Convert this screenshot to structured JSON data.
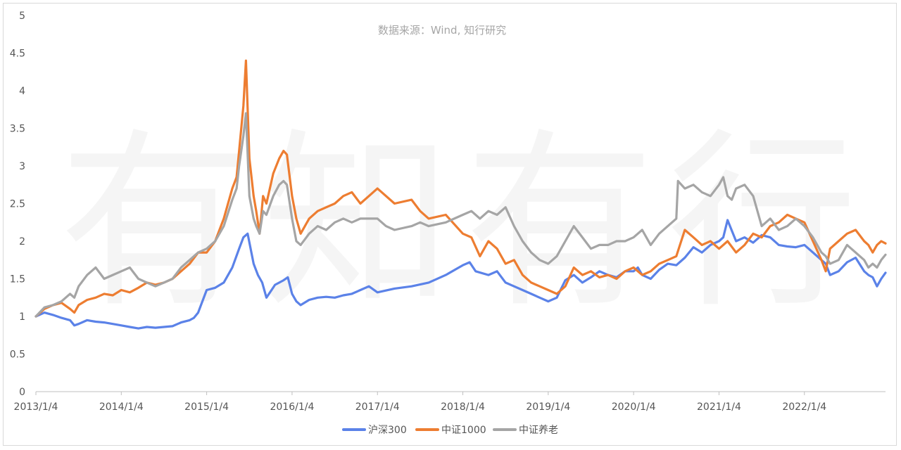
{
  "chart_data": {
    "type": "line",
    "title": "数据来源：Wind, 知行研究",
    "watermark": "有知有行",
    "xlabel": "",
    "ylabel": "",
    "ylim": [
      0,
      5
    ],
    "yticks": [
      "0",
      "0.5",
      "1",
      "1.5",
      "2",
      "2.5",
      "3",
      "3.5",
      "4",
      "4.5",
      "5"
    ],
    "xticks": [
      "2013/1/4",
      "2014/1/4",
      "2015/1/4",
      "2016/1/4",
      "2017/1/4",
      "2018/1/4",
      "2019/1/4",
      "2020/1/4",
      "2021/1/4",
      "2022/1/4"
    ],
    "xlim": [
      2013.0,
      2022.95
    ],
    "grid": false,
    "legend_position": "bottom",
    "colors": {
      "hs300": "#5b82e8",
      "zz1000": "#ed7d31",
      "zzyl": "#a5a5a5"
    },
    "series": [
      {
        "name": "沪深300",
        "color": "#5b82e8",
        "x": [
          2013.0,
          2013.1,
          2013.2,
          2013.3,
          2013.4,
          2013.45,
          2013.5,
          2013.6,
          2013.7,
          2013.8,
          2013.9,
          2014.0,
          2014.1,
          2014.2,
          2014.3,
          2014.4,
          2014.5,
          2014.6,
          2014.7,
          2014.8,
          2014.85,
          2014.9,
          2015.0,
          2015.1,
          2015.2,
          2015.3,
          2015.38,
          2015.43,
          2015.48,
          2015.55,
          2015.6,
          2015.65,
          2015.7,
          2015.8,
          2015.9,
          2015.95,
          2016.0,
          2016.05,
          2016.1,
          2016.2,
          2016.3,
          2016.4,
          2016.5,
          2016.6,
          2016.7,
          2016.8,
          2016.9,
          2017.0,
          2017.2,
          2017.4,
          2017.6,
          2017.8,
          2018.0,
          2018.08,
          2018.15,
          2018.3,
          2018.4,
          2018.5,
          2018.6,
          2018.7,
          2018.8,
          2018.9,
          2019.0,
          2019.1,
          2019.2,
          2019.3,
          2019.4,
          2019.5,
          2019.6,
          2019.7,
          2019.8,
          2019.9,
          2020.0,
          2020.05,
          2020.1,
          2020.2,
          2020.3,
          2020.4,
          2020.5,
          2020.6,
          2020.7,
          2020.8,
          2020.9,
          2021.0,
          2021.05,
          2021.1,
          2021.2,
          2021.3,
          2021.4,
          2021.5,
          2021.6,
          2021.7,
          2021.8,
          2021.9,
          2022.0,
          2022.1,
          2022.2,
          2022.25,
          2022.3,
          2022.4,
          2022.5,
          2022.6,
          2022.7,
          2022.75,
          2022.8,
          2022.85,
          2022.9,
          2022.95
        ],
        "y": [
          1.0,
          1.05,
          1.02,
          0.98,
          0.95,
          0.88,
          0.9,
          0.95,
          0.93,
          0.92,
          0.9,
          0.88,
          0.86,
          0.84,
          0.86,
          0.85,
          0.86,
          0.87,
          0.92,
          0.95,
          0.98,
          1.05,
          1.35,
          1.38,
          1.45,
          1.65,
          1.9,
          2.05,
          2.1,
          1.7,
          1.55,
          1.45,
          1.25,
          1.42,
          1.48,
          1.52,
          1.3,
          1.2,
          1.15,
          1.22,
          1.25,
          1.26,
          1.25,
          1.28,
          1.3,
          1.35,
          1.4,
          1.32,
          1.37,
          1.4,
          1.45,
          1.55,
          1.68,
          1.72,
          1.6,
          1.55,
          1.6,
          1.45,
          1.4,
          1.35,
          1.3,
          1.25,
          1.2,
          1.25,
          1.48,
          1.55,
          1.45,
          1.52,
          1.6,
          1.55,
          1.52,
          1.6,
          1.6,
          1.65,
          1.55,
          1.5,
          1.62,
          1.7,
          1.68,
          1.78,
          1.92,
          1.85,
          1.95,
          2.0,
          2.05,
          2.28,
          2.0,
          2.05,
          1.98,
          2.08,
          2.05,
          1.95,
          1.93,
          1.92,
          1.95,
          1.85,
          1.75,
          1.7,
          1.55,
          1.6,
          1.72,
          1.78,
          1.6,
          1.55,
          1.52,
          1.4,
          1.5,
          1.58
        ]
      },
      {
        "name": "中证1000",
        "color": "#ed7d31",
        "x": [
          2013.0,
          2013.1,
          2013.2,
          2013.3,
          2013.4,
          2013.45,
          2013.5,
          2013.6,
          2013.7,
          2013.8,
          2013.9,
          2014.0,
          2014.1,
          2014.2,
          2014.3,
          2014.4,
          2014.5,
          2014.6,
          2014.7,
          2014.8,
          2014.9,
          2015.0,
          2015.1,
          2015.2,
          2015.3,
          2015.35,
          2015.38,
          2015.43,
          2015.46,
          2015.5,
          2015.55,
          2015.58,
          2015.62,
          2015.66,
          2015.7,
          2015.78,
          2015.85,
          2015.9,
          2015.94,
          2016.0,
          2016.05,
          2016.1,
          2016.2,
          2016.3,
          2016.4,
          2016.5,
          2016.6,
          2016.7,
          2016.8,
          2016.9,
          2017.0,
          2017.05,
          2017.2,
          2017.4,
          2017.5,
          2017.6,
          2017.8,
          2018.0,
          2018.1,
          2018.2,
          2018.3,
          2018.4,
          2018.5,
          2018.6,
          2018.7,
          2018.8,
          2018.9,
          2019.0,
          2019.1,
          2019.2,
          2019.3,
          2019.4,
          2019.5,
          2019.6,
          2019.7,
          2019.8,
          2019.9,
          2020.0,
          2020.1,
          2020.2,
          2020.3,
          2020.4,
          2020.5,
          2020.6,
          2020.7,
          2020.8,
          2020.9,
          2021.0,
          2021.05,
          2021.1,
          2021.2,
          2021.3,
          2021.4,
          2021.5,
          2021.6,
          2021.7,
          2021.8,
          2021.9,
          2022.0,
          2022.1,
          2022.2,
          2022.25,
          2022.3,
          2022.4,
          2022.5,
          2022.6,
          2022.7,
          2022.75,
          2022.8,
          2022.85,
          2022.9,
          2022.95
        ],
        "y": [
          1.0,
          1.1,
          1.15,
          1.18,
          1.1,
          1.05,
          1.15,
          1.22,
          1.25,
          1.3,
          1.28,
          1.35,
          1.32,
          1.38,
          1.45,
          1.42,
          1.45,
          1.5,
          1.6,
          1.7,
          1.85,
          1.85,
          2.0,
          2.3,
          2.7,
          2.85,
          3.2,
          3.8,
          4.4,
          3.1,
          2.6,
          2.4,
          2.1,
          2.6,
          2.5,
          2.9,
          3.1,
          3.2,
          3.15,
          2.6,
          2.3,
          2.1,
          2.3,
          2.4,
          2.45,
          2.5,
          2.6,
          2.65,
          2.5,
          2.6,
          2.7,
          2.65,
          2.5,
          2.55,
          2.4,
          2.3,
          2.35,
          2.1,
          2.05,
          1.8,
          2.0,
          1.9,
          1.7,
          1.75,
          1.55,
          1.45,
          1.4,
          1.35,
          1.3,
          1.4,
          1.65,
          1.55,
          1.6,
          1.52,
          1.55,
          1.5,
          1.6,
          1.65,
          1.55,
          1.6,
          1.7,
          1.75,
          1.8,
          2.15,
          2.05,
          1.95,
          2.0,
          1.9,
          1.95,
          2.0,
          1.85,
          1.95,
          2.1,
          2.05,
          2.2,
          2.25,
          2.35,
          2.3,
          2.25,
          2.0,
          1.75,
          1.6,
          1.9,
          2.0,
          2.1,
          2.15,
          2.0,
          1.95,
          1.85,
          1.95,
          2.0,
          1.97
        ]
      },
      {
        "name": "中证养老",
        "color": "#a5a5a5",
        "x": [
          2013.0,
          2013.1,
          2013.2,
          2013.3,
          2013.4,
          2013.45,
          2013.5,
          2013.6,
          2013.7,
          2013.8,
          2013.9,
          2014.0,
          2014.1,
          2014.2,
          2014.3,
          2014.4,
          2014.5,
          2014.6,
          2014.7,
          2014.8,
          2014.9,
          2015.0,
          2015.1,
          2015.2,
          2015.3,
          2015.35,
          2015.38,
          2015.43,
          2015.46,
          2015.5,
          2015.55,
          2015.58,
          2015.62,
          2015.66,
          2015.7,
          2015.78,
          2015.85,
          2015.9,
          2015.94,
          2016.0,
          2016.05,
          2016.1,
          2016.2,
          2016.3,
          2016.4,
          2016.5,
          2016.6,
          2016.7,
          2016.8,
          2016.9,
          2017.0,
          2017.1,
          2017.2,
          2017.4,
          2017.5,
          2017.6,
          2017.8,
          2018.0,
          2018.1,
          2018.2,
          2018.3,
          2018.4,
          2018.5,
          2018.6,
          2018.7,
          2018.8,
          2018.9,
          2019.0,
          2019.1,
          2019.2,
          2019.3,
          2019.4,
          2019.5,
          2019.6,
          2019.7,
          2019.8,
          2019.9,
          2020.0,
          2020.1,
          2020.2,
          2020.3,
          2020.4,
          2020.5,
          2020.52,
          2020.6,
          2020.7,
          2020.8,
          2020.9,
          2021.0,
          2021.05,
          2021.1,
          2021.15,
          2021.2,
          2021.3,
          2021.4,
          2021.5,
          2021.6,
          2021.7,
          2021.8,
          2021.9,
          2022.0,
          2022.1,
          2022.2,
          2022.25,
          2022.3,
          2022.4,
          2022.5,
          2022.6,
          2022.7,
          2022.75,
          2022.8,
          2022.85,
          2022.9,
          2022.95
        ],
        "y": [
          1.0,
          1.12,
          1.15,
          1.2,
          1.3,
          1.25,
          1.4,
          1.55,
          1.65,
          1.5,
          1.55,
          1.6,
          1.65,
          1.5,
          1.45,
          1.4,
          1.45,
          1.5,
          1.65,
          1.75,
          1.85,
          1.9,
          2.0,
          2.2,
          2.55,
          2.7,
          3.0,
          3.4,
          3.7,
          2.6,
          2.3,
          2.2,
          2.1,
          2.4,
          2.35,
          2.6,
          2.75,
          2.8,
          2.75,
          2.3,
          2.0,
          1.95,
          2.1,
          2.2,
          2.15,
          2.25,
          2.3,
          2.25,
          2.3,
          2.3,
          2.3,
          2.2,
          2.15,
          2.2,
          2.25,
          2.2,
          2.25,
          2.35,
          2.4,
          2.3,
          2.4,
          2.35,
          2.45,
          2.2,
          2.0,
          1.85,
          1.75,
          1.7,
          1.8,
          2.0,
          2.2,
          2.05,
          1.9,
          1.95,
          1.95,
          2.0,
          2.0,
          2.05,
          2.15,
          1.95,
          2.1,
          2.2,
          2.3,
          2.8,
          2.7,
          2.75,
          2.65,
          2.6,
          2.75,
          2.85,
          2.6,
          2.55,
          2.7,
          2.75,
          2.6,
          2.2,
          2.3,
          2.15,
          2.2,
          2.3,
          2.2,
          2.05,
          1.85,
          1.8,
          1.7,
          1.75,
          1.95,
          1.85,
          1.75,
          1.65,
          1.7,
          1.65,
          1.75,
          1.82
        ]
      }
    ]
  }
}
